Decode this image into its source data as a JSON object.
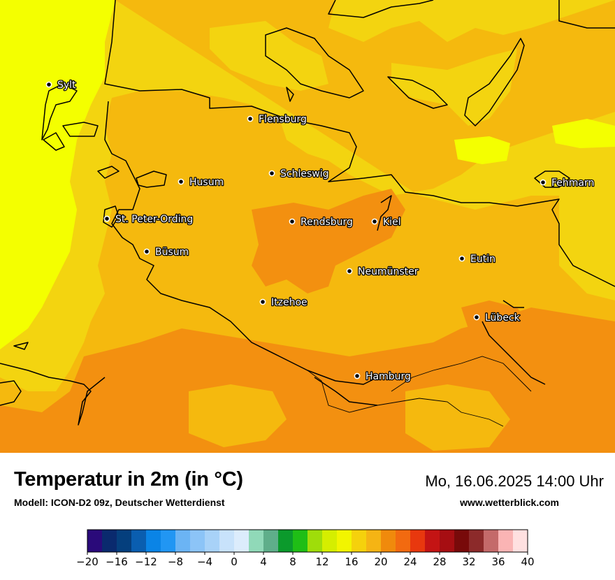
{
  "header": {
    "title": "Temperatur in 2m (in °C)",
    "subtitle": "Modell: ICON-D2 09z, Deutscher Wetterdienst",
    "datetime": "Mo, 16.06.2025 14:00 Uhr",
    "website": "www.wetterblick.com"
  },
  "cities": [
    {
      "name": "Sylt"
    },
    {
      "name": "Flensburg"
    },
    {
      "name": "Schleswig"
    },
    {
      "name": "Husum"
    },
    {
      "name": "Fehmarn"
    },
    {
      "name": "St. Peter-Ording"
    },
    {
      "name": "Rendsburg"
    },
    {
      "name": "Kiel"
    },
    {
      "name": "Büsum"
    },
    {
      "name": "Neumünster"
    },
    {
      "name": "Eutin"
    },
    {
      "name": "Itzehoe"
    },
    {
      "name": "Lübeck"
    },
    {
      "name": "Hamburg"
    }
  ],
  "colorbar": {
    "ticks": [
      "−20",
      "−16",
      "−12",
      "−8",
      "−4",
      "0",
      "4",
      "8",
      "12",
      "16",
      "20",
      "24",
      "28",
      "32",
      "36",
      "40"
    ],
    "colors": [
      "#2a0a7a",
      "#0a2a6e",
      "#053f7d",
      "#0a5eb0",
      "#0a84e6",
      "#2196f3",
      "#6bb4f4",
      "#8cc4f7",
      "#a8d2f8",
      "#c8e2fb",
      "#dcecfc",
      "#90d9b8",
      "#5fae8a",
      "#0b9a2c",
      "#1fbe16",
      "#9fdd0a",
      "#d5ee00",
      "#f2f500",
      "#f5d10c",
      "#f5b414",
      "#f08a0c",
      "#f26a10",
      "#e8380e",
      "#c41414",
      "#a60e12",
      "#780a0a",
      "#8c2a2a",
      "#c46a6a",
      "#fab4b4",
      "#ffe0e0"
    ]
  },
  "map_colors": {
    "sea_far": "#f4ff00",
    "temp_16": "#f3d410",
    "temp_18": "#f5b90e",
    "temp_20": "#f39010",
    "temp_22": "#f27010",
    "coast": "#000000"
  }
}
